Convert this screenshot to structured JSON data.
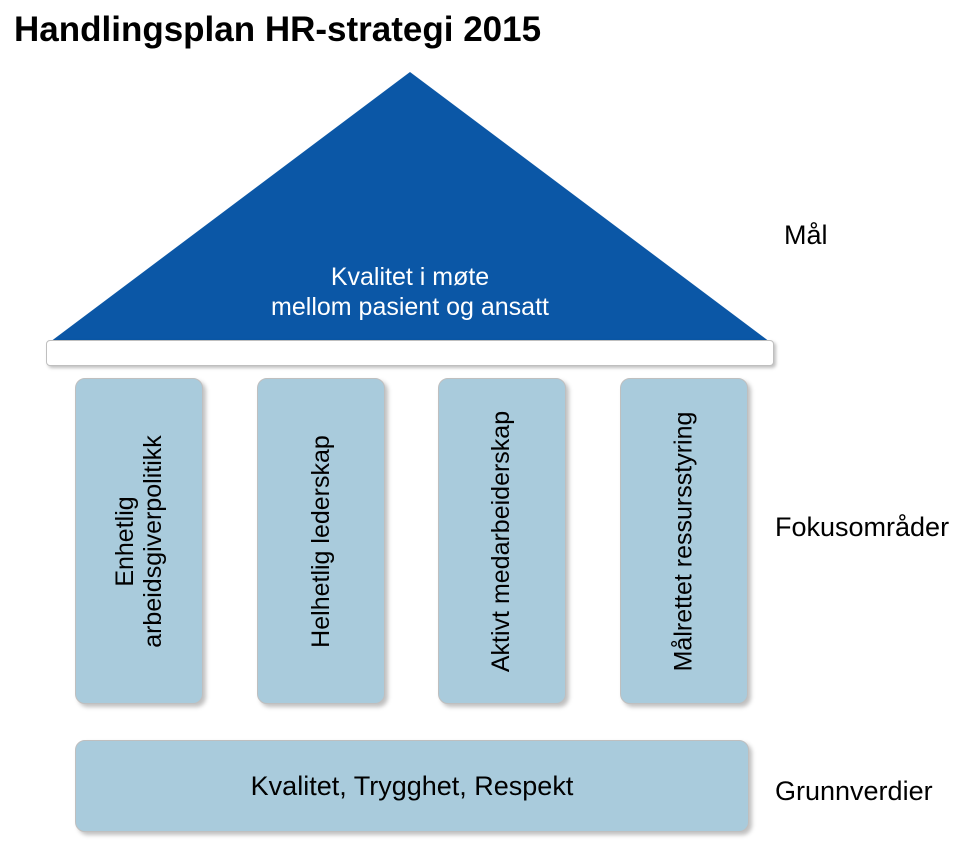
{
  "title": "Handlingsplan HR-strategi 2015",
  "roof": {
    "line1": "Kvalitet i møte",
    "line2": "mellom pasient og ansatt",
    "fill_color": "#0b57a6",
    "text_color": "#ffffff"
  },
  "labels": {
    "mal": "Mål",
    "fokus": "Fokusområder",
    "grunn": "Grunnverdier"
  },
  "pillars": {
    "fill_color": "#a9cbdc",
    "items": [
      {
        "line1": "Enhetlig",
        "line2": "arbeidsgiverpolitikk"
      },
      {
        "line1": "Helhetlig lederskap"
      },
      {
        "line1": "Aktivt medarbeiderskap"
      },
      {
        "line1": "Målrettet ressursstyring"
      }
    ]
  },
  "foundation": {
    "text": "Kvalitet, Trygghet, Respekt",
    "fill_color": "#a9cbdc"
  },
  "style": {
    "background_color": "#ffffff",
    "title_fontsize": 35,
    "label_fontsize": 27,
    "pillar_fontsize": 25,
    "roof_fontsize": 25,
    "platform_border_color": "#bfbfbf"
  }
}
